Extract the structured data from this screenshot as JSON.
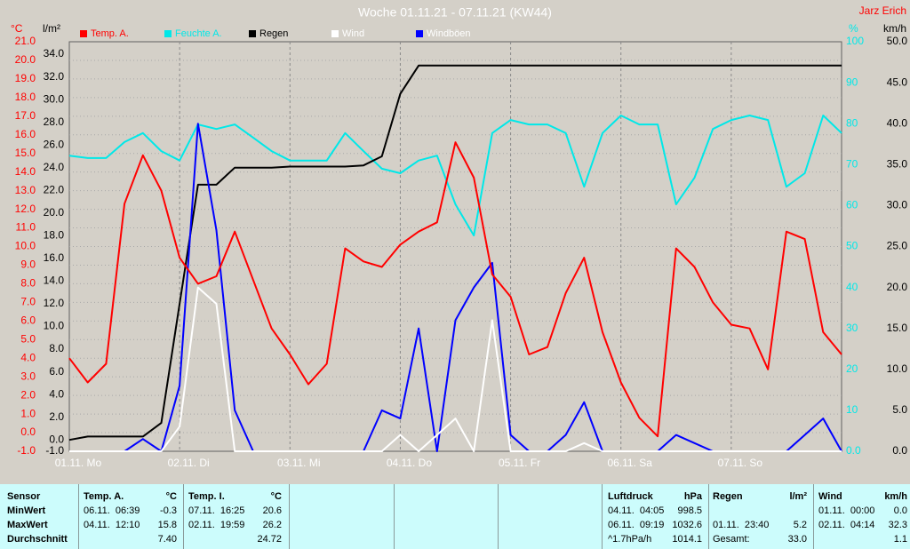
{
  "chart_data": {
    "type": "line",
    "title": "Woche 01.11.21 - 07.11.21 (KW44)",
    "author": "Jarz Erich",
    "y_label": "°C",
    "y2_label": "l/m²",
    "y3_label": "%",
    "y4_label": "km/h",
    "legend_position": "top",
    "grid": true,
    "x": [
      0,
      4,
      8,
      12,
      16,
      20,
      24,
      28,
      32,
      36,
      40,
      44,
      48,
      52,
      56,
      60,
      64,
      68,
      72,
      76,
      80,
      84,
      88,
      92,
      96,
      100,
      104,
      108,
      112,
      116,
      120,
      124,
      128,
      132,
      136,
      140,
      144,
      148,
      152,
      156,
      160,
      164,
      168
    ],
    "xlim": [
      0,
      168
    ],
    "xticks": [
      {
        "value": 0,
        "label": "01.11. Mo"
      },
      {
        "value": 24,
        "label": "02.11. Di"
      },
      {
        "value": 48,
        "label": "03.11. Mi"
      },
      {
        "value": 72,
        "label": "04.11. Do"
      },
      {
        "value": 96,
        "label": "05.11. Fr"
      },
      {
        "value": 120,
        "label": "06.11. Sa"
      },
      {
        "value": 144,
        "label": "07.11. So"
      }
    ],
    "ylim": [
      -1,
      21
    ],
    "yticks": [
      {
        "value": 21,
        "label": "21.0"
      },
      {
        "value": 20,
        "label": "20.0"
      },
      {
        "value": 19,
        "label": "19.0"
      },
      {
        "value": 18,
        "label": "18.0"
      },
      {
        "value": 17,
        "label": "17.0"
      },
      {
        "value": 16,
        "label": "16.0"
      },
      {
        "value": 15,
        "label": "15.0"
      },
      {
        "value": 14,
        "label": "14.0"
      },
      {
        "value": 13,
        "label": "13.0"
      },
      {
        "value": 12,
        "label": "12.0"
      },
      {
        "value": 11,
        "label": "11.0"
      },
      {
        "value": 10,
        "label": "10.0"
      },
      {
        "value": 9,
        "label": "9.0"
      },
      {
        "value": 8,
        "label": "8.0"
      },
      {
        "value": 7,
        "label": "7.0"
      },
      {
        "value": 6,
        "label": "6.0"
      },
      {
        "value": 5,
        "label": "5.0"
      },
      {
        "value": 4,
        "label": "4.0"
      },
      {
        "value": 3,
        "label": "3.0"
      },
      {
        "value": 2,
        "label": "2.0"
      },
      {
        "value": 1,
        "label": "1.0"
      },
      {
        "value": 0,
        "label": "0.0"
      },
      {
        "value": -1,
        "label": "-1.0"
      }
    ],
    "y2lim": [
      -1,
      35.1
    ],
    "y2ticks": [
      {
        "value": 34,
        "label": "34.0"
      },
      {
        "value": 32,
        "label": "32.0"
      },
      {
        "value": 30,
        "label": "30.0"
      },
      {
        "value": 28,
        "label": "28.0"
      },
      {
        "value": 26,
        "label": "26.0"
      },
      {
        "value": 24,
        "label": "24.0"
      },
      {
        "value": 22,
        "label": "22.0"
      },
      {
        "value": 20,
        "label": "20.0"
      },
      {
        "value": 18,
        "label": "18.0"
      },
      {
        "value": 16,
        "label": "16.0"
      },
      {
        "value": 14,
        "label": "14.0"
      },
      {
        "value": 12,
        "label": "12.0"
      },
      {
        "value": 10,
        "label": "10.0"
      },
      {
        "value": 8,
        "label": "8.0"
      },
      {
        "value": 6,
        "label": "6.0"
      },
      {
        "value": 4,
        "label": "4.0"
      },
      {
        "value": 2,
        "label": "2.0"
      },
      {
        "value": 0,
        "label": "0.0"
      },
      {
        "value": -1,
        "label": "-1.0"
      }
    ],
    "y3lim": [
      0,
      100
    ],
    "y3ticks": [
      100,
      90,
      80,
      70,
      60,
      50,
      40,
      30,
      20,
      10,
      {
        "value": 0,
        "label": "0.0"
      }
    ],
    "y4lim": [
      0,
      50
    ],
    "y4ticks": [
      {
        "value": 50,
        "label": "50.0"
      },
      {
        "value": 45,
        "label": "45.0"
      },
      {
        "value": 40,
        "label": "40.0"
      },
      {
        "value": 35,
        "label": "35.0"
      },
      {
        "value": 30,
        "label": "30.0"
      },
      {
        "value": 25,
        "label": "25.0"
      },
      {
        "value": 20,
        "label": "20.0"
      },
      {
        "value": 15,
        "label": "15.0"
      },
      {
        "value": 10,
        "label": "10.0"
      },
      {
        "value": 5,
        "label": "5.0"
      },
      {
        "value": 0,
        "label": "0.0"
      }
    ],
    "series": [
      {
        "name": "Temp. A.",
        "color": "#ff0000",
        "axis": "y",
        "values": [
          4.0,
          2.7,
          3.7,
          12.3,
          14.9,
          13.0,
          9.4,
          8.0,
          8.4,
          10.8,
          8.2,
          5.6,
          4.2,
          2.6,
          3.7,
          9.9,
          9.2,
          8.9,
          10.1,
          10.8,
          11.3,
          15.6,
          13.7,
          8.5,
          7.3,
          4.2,
          4.6,
          7.5,
          9.4,
          5.4,
          2.7,
          0.8,
          -0.2,
          9.9,
          8.9,
          7.0,
          5.8,
          5.6,
          3.4,
          10.8,
          10.4,
          5.4,
          4.2
        ]
      },
      {
        "name": "Feuchte A.",
        "color": "#00e8e8",
        "axis": "y3",
        "values": [
          72.2,
          71.6,
          71.6,
          75.5,
          77.7,
          73.3,
          71,
          79.8,
          78.7,
          79.8,
          76.6,
          73.3,
          71,
          71,
          71,
          77.7,
          73.3,
          69,
          67.9,
          71,
          72.2,
          60.3,
          52.7,
          77.7,
          80.9,
          79.8,
          79.8,
          77.7,
          64.6,
          77.7,
          82,
          79.8,
          79.8,
          60.3,
          66.8,
          78.7,
          80.9,
          82,
          80.9,
          64.6,
          67.9,
          82,
          77.7
        ]
      },
      {
        "name": "Regen",
        "color": "#000000",
        "axis": "y2",
        "values": [
          0,
          0.3,
          0.3,
          0.3,
          0.3,
          1.5,
          12,
          22.5,
          22.5,
          24,
          24,
          24,
          24.1,
          24.1,
          24.1,
          24.1,
          24.2,
          25,
          30.5,
          33,
          33,
          33,
          33,
          33,
          33,
          33,
          33,
          33,
          33,
          33,
          33,
          33,
          33,
          33,
          33,
          33,
          33,
          33,
          33,
          33,
          33,
          33,
          33
        ]
      },
      {
        "name": "Wind",
        "color": "#ffffff",
        "axis": "y4",
        "values": [
          0,
          0,
          0,
          0,
          0,
          0,
          3,
          20,
          18,
          0,
          0,
          0,
          0,
          0,
          0,
          0,
          0,
          0,
          2,
          0,
          2,
          4,
          0,
          16,
          0,
          0,
          0,
          0,
          1,
          0,
          0,
          0,
          0,
          0,
          0,
          0,
          0,
          0,
          0,
          0,
          0,
          0,
          0
        ]
      },
      {
        "name": "Windböen",
        "color": "#0000ff",
        "axis": "y4",
        "values": [
          0,
          0,
          0,
          0,
          1.5,
          0,
          8,
          40,
          27,
          5,
          0,
          0,
          0,
          0,
          0,
          0,
          0,
          5,
          4,
          15,
          0,
          16,
          20,
          23,
          2,
          0,
          0,
          2,
          6,
          0,
          0,
          0,
          0,
          2,
          1,
          0,
          0,
          0,
          0,
          0,
          2,
          4,
          0
        ]
      }
    ]
  },
  "table": {
    "header": {
      "sensor": "Sensor",
      "temp_a": [
        "Temp. A.",
        "°C"
      ],
      "temp_i": [
        "Temp. I.",
        "°C"
      ],
      "pressure": [
        "Luftdruck",
        "hPa"
      ],
      "rain": [
        "Regen",
        "l/m²"
      ],
      "wind": [
        "Wind",
        "km/h"
      ]
    },
    "rows": [
      {
        "label": "MinWert",
        "temp_a": {
          "time": "06.11.  06:39",
          "value": "-0.3"
        },
        "temp_i": {
          "time": "07.11.  16:25",
          "value": "20.6"
        },
        "pressure": {
          "time": "04.11.  04:05",
          "value": "998.5"
        },
        "wind": {
          "time": "01.11.  00:00",
          "value": "0.0"
        }
      },
      {
        "label": "MaxWert",
        "temp_a": {
          "time": "04.11.  12:10",
          "value": "15.8"
        },
        "temp_i": {
          "time": "02.11.  19:59",
          "value": "26.2"
        },
        "pressure": {
          "time": "06.11.  09:19",
          "value": "1032.6"
        },
        "rain": {
          "time": "01.11.  23:40",
          "value": "5.2"
        },
        "wind": {
          "time": "02.11.  04:14",
          "value": "32.3"
        }
      },
      {
        "label": "Durchschnitt",
        "temp_a": {
          "value": "7.40"
        },
        "temp_i": {
          "value": "24.72"
        },
        "pressure": {
          "time": "^1.7hPa/h",
          "value": "1014.1"
        },
        "rain": {
          "time": "Gesamt:",
          "value": "33.0"
        },
        "wind": {
          "value": "1.1"
        }
      }
    ]
  }
}
